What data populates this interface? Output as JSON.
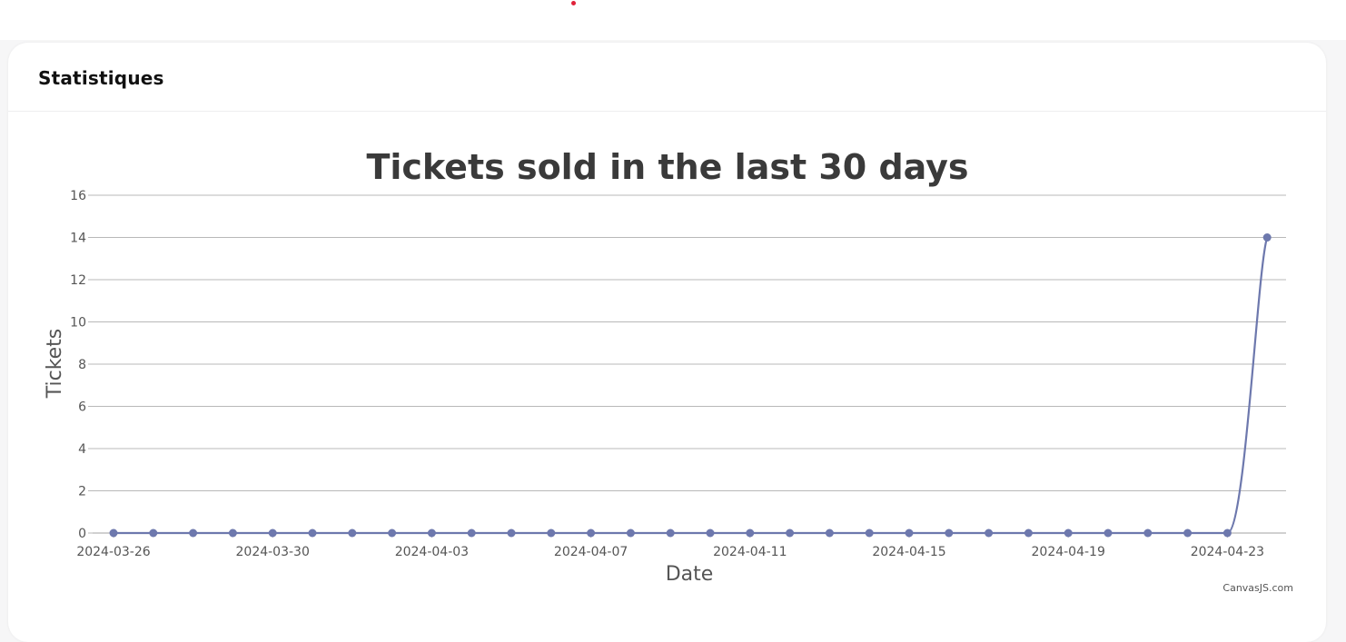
{
  "card": {
    "title": "Statistiques"
  },
  "chart_data": {
    "type": "line",
    "title": "Tickets sold in the last 30 days",
    "xlabel": "Date",
    "ylabel": "Tickets",
    "ylim": [
      0,
      16
    ],
    "yticks": [
      0,
      2,
      4,
      6,
      8,
      10,
      12,
      14,
      16
    ],
    "xticks": [
      "2024-03-26",
      "2024-03-30",
      "2024-04-03",
      "2024-04-07",
      "2024-04-11",
      "2024-04-15",
      "2024-04-19",
      "2024-04-23"
    ],
    "grid": true,
    "legend": "none",
    "color": "#6d78ad",
    "x": [
      "2024-03-26",
      "2024-03-27",
      "2024-03-28",
      "2024-03-29",
      "2024-03-30",
      "2024-03-31",
      "2024-04-01",
      "2024-04-02",
      "2024-04-03",
      "2024-04-04",
      "2024-04-05",
      "2024-04-06",
      "2024-04-07",
      "2024-04-08",
      "2024-04-09",
      "2024-04-10",
      "2024-04-11",
      "2024-04-12",
      "2024-04-13",
      "2024-04-14",
      "2024-04-15",
      "2024-04-16",
      "2024-04-17",
      "2024-04-18",
      "2024-04-19",
      "2024-04-20",
      "2024-04-21",
      "2024-04-22",
      "2024-04-23",
      "2024-04-24"
    ],
    "series": [
      {
        "values": [
          0,
          0,
          0,
          0,
          0,
          0,
          0,
          0,
          0,
          0,
          0,
          0,
          0,
          0,
          0,
          0,
          0,
          0,
          0,
          0,
          0,
          0,
          0,
          0,
          0,
          0,
          0,
          0,
          0,
          14
        ]
      }
    ],
    "credit": "CanvasJS.com"
  }
}
